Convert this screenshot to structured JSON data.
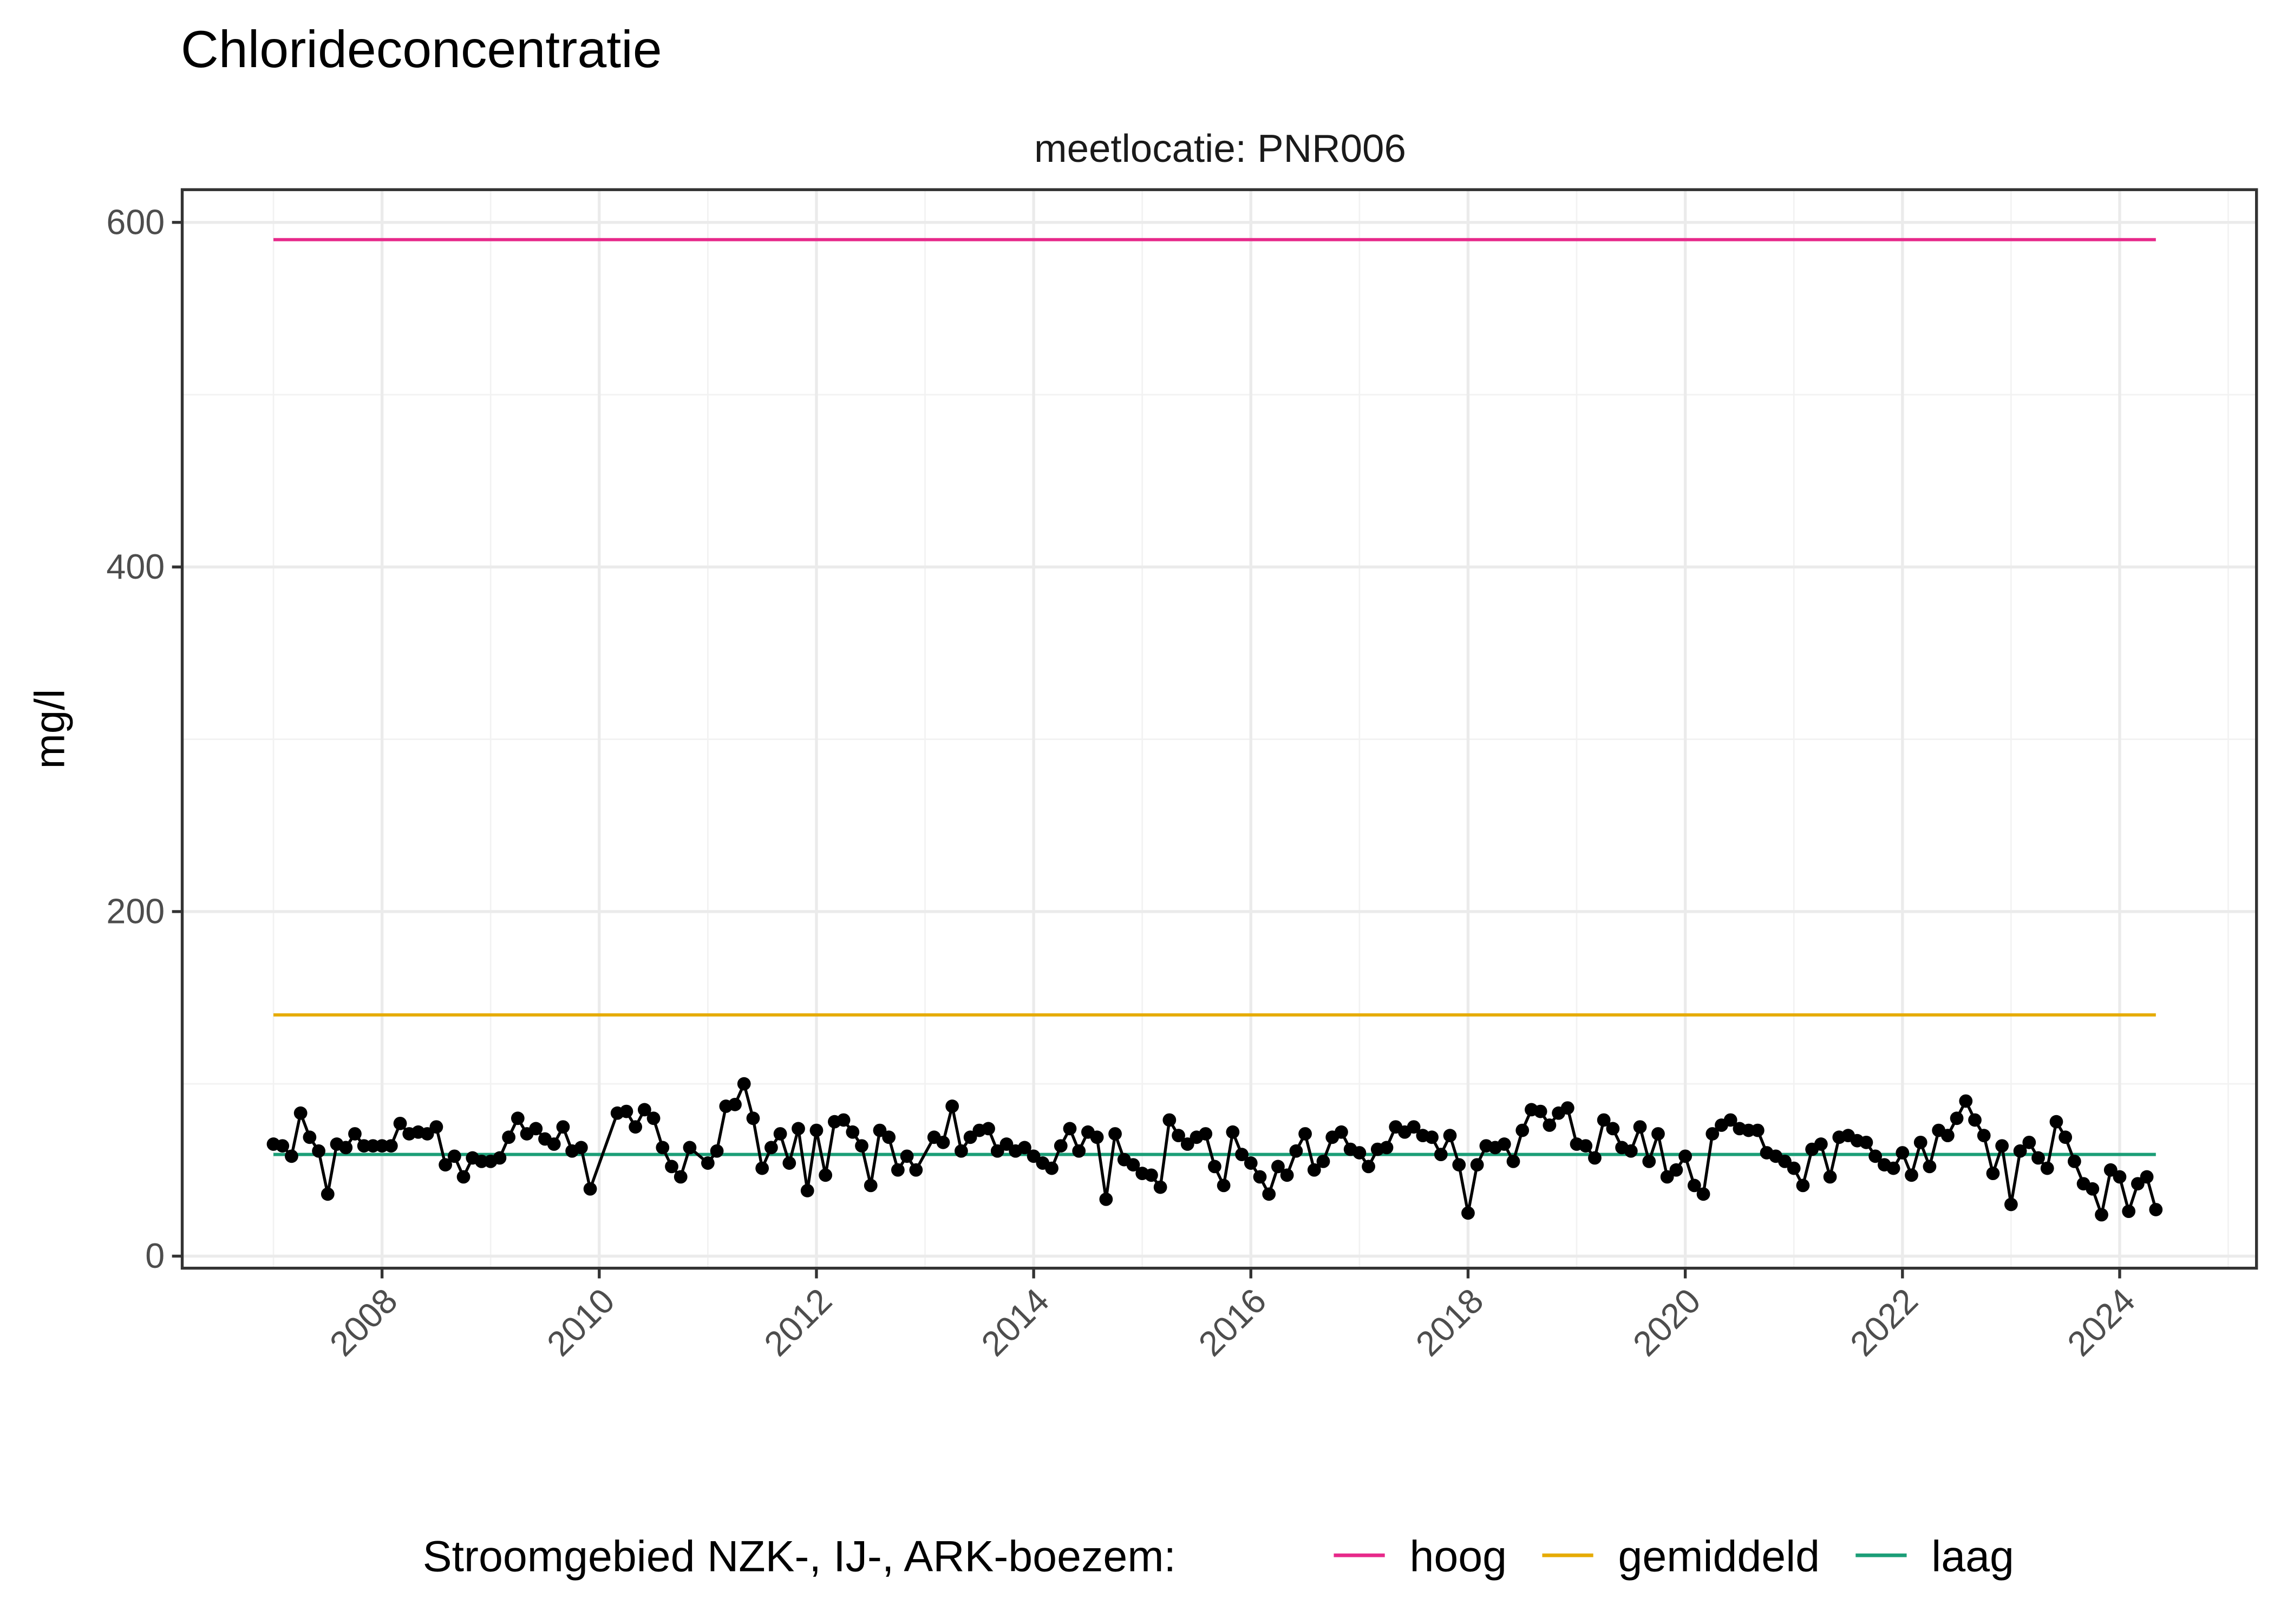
{
  "title": "Chloride­concentratie",
  "chart_data": {
    "type": "line",
    "title": "Chlorideconcentratie",
    "facet_label": "meetlocatie: PNR006",
    "xlabel": "",
    "ylabel": "mg/l",
    "xlim": [
      2006.16,
      2025.26
    ],
    "ylim": [
      -7,
      619
    ],
    "x_ticks": [
      "2008",
      "2010",
      "2012",
      "2014",
      "2016",
      "2018",
      "2020",
      "2022",
      "2024"
    ],
    "y_ticks": [
      "0",
      "200",
      "400",
      "600"
    ],
    "grid": true,
    "legend": {
      "position": "bottom",
      "title": "Stroomgebied NZK-, IJ-, ARK-boezem:",
      "entries": [
        {
          "label": "hoog",
          "color": "#E7298A"
        },
        {
          "label": "gemiddeld",
          "color": "#E6AB02"
        },
        {
          "label": "laag",
          "color": "#1B9E77"
        }
      ]
    },
    "reference_lines": [
      {
        "name": "hoog",
        "value": 590,
        "from": "2007-01",
        "to": "2024-05",
        "color": "#E7298A"
      },
      {
        "name": "gemiddeld",
        "value": 140,
        "from": "2007-01",
        "to": "2024-05",
        "color": "#E6AB02"
      },
      {
        "name": "laag",
        "value": 59,
        "from": "2007-01",
        "to": "2024-05",
        "color": "#1B9E77"
      }
    ],
    "series": [
      {
        "color": "#000000",
        "points": [
          [
            "2007-01",
            65
          ],
          [
            "2007-02",
            64
          ],
          [
            "2007-03",
            58
          ],
          [
            "2007-04",
            83
          ],
          [
            "2007-05",
            69
          ],
          [
            "2007-06",
            61
          ],
          [
            "2007-07",
            36
          ],
          [
            "2007-08",
            65
          ],
          [
            "2007-09",
            63
          ],
          [
            "2007-10",
            71
          ],
          [
            "2007-11",
            64
          ],
          [
            "2007-12",
            64
          ],
          [
            "2008-01",
            64
          ],
          [
            "2008-02",
            64
          ],
          [
            "2008-03",
            77
          ],
          [
            "2008-04",
            71
          ],
          [
            "2008-05",
            72
          ],
          [
            "2008-06",
            71
          ],
          [
            "2008-07",
            75
          ],
          [
            "2008-08",
            53
          ],
          [
            "2008-09",
            58
          ],
          [
            "2008-10",
            46
          ],
          [
            "2008-11",
            57
          ],
          [
            "2008-12",
            55
          ],
          [
            "2009-01",
            55
          ],
          [
            "2009-02",
            57
          ],
          [
            "2009-03",
            69
          ],
          [
            "2009-04",
            80
          ],
          [
            "2009-05",
            71
          ],
          [
            "2009-06",
            74
          ],
          [
            "2009-07",
            68
          ],
          [
            "2009-08",
            65
          ],
          [
            "2009-09",
            75
          ],
          [
            "2009-10",
            61
          ],
          [
            "2009-11",
            63
          ],
          [
            "2009-12",
            39
          ],
          [
            "2010-03",
            83
          ],
          [
            "2010-04",
            84
          ],
          [
            "2010-05",
            75
          ],
          [
            "2010-06",
            85
          ],
          [
            "2010-07",
            80
          ],
          [
            "2010-08",
            63
          ],
          [
            "2010-09",
            52
          ],
          [
            "2010-10",
            46
          ],
          [
            "2010-11",
            63
          ],
          [
            "2011-01",
            54
          ],
          [
            "2011-02",
            61
          ],
          [
            "2011-03",
            87
          ],
          [
            "2011-04",
            88
          ],
          [
            "2011-05",
            100
          ],
          [
            "2011-06",
            80
          ],
          [
            "2011-07",
            51
          ],
          [
            "2011-08",
            63
          ],
          [
            "2011-09",
            71
          ],
          [
            "2011-10",
            54
          ],
          [
            "2011-11",
            74
          ],
          [
            "2011-12",
            38
          ],
          [
            "2012-01",
            73
          ],
          [
            "2012-02",
            47
          ],
          [
            "2012-03",
            78
          ],
          [
            "2012-04",
            79
          ],
          [
            "2012-05",
            72
          ],
          [
            "2012-06",
            64
          ],
          [
            "2012-07",
            41
          ],
          [
            "2012-08",
            73
          ],
          [
            "2012-09",
            69
          ],
          [
            "2012-10",
            50
          ],
          [
            "2012-11",
            58
          ],
          [
            "2012-12",
            50
          ],
          [
            "2013-02",
            69
          ],
          [
            "2013-03",
            66
          ],
          [
            "2013-04",
            87
          ],
          [
            "2013-05",
            61
          ],
          [
            "2013-06",
            69
          ],
          [
            "2013-07",
            73
          ],
          [
            "2013-08",
            74
          ],
          [
            "2013-09",
            61
          ],
          [
            "2013-10",
            65
          ],
          [
            "2013-11",
            61
          ],
          [
            "2013-12",
            63
          ],
          [
            "2014-01",
            58
          ],
          [
            "2014-02",
            54
          ],
          [
            "2014-03",
            51
          ],
          [
            "2014-04",
            64
          ],
          [
            "2014-05",
            74
          ],
          [
            "2014-06",
            61
          ],
          [
            "2014-07",
            72
          ],
          [
            "2014-08",
            69
          ],
          [
            "2014-09",
            33
          ],
          [
            "2014-10",
            71
          ],
          [
            "2014-11",
            56
          ],
          [
            "2014-12",
            53
          ],
          [
            "2015-01",
            48
          ],
          [
            "2015-02",
            47
          ],
          [
            "2015-03",
            40
          ],
          [
            "2015-04",
            79
          ],
          [
            "2015-05",
            70
          ],
          [
            "2015-06",
            65
          ],
          [
            "2015-07",
            69
          ],
          [
            "2015-08",
            71
          ],
          [
            "2015-09",
            52
          ],
          [
            "2015-10",
            41
          ],
          [
            "2015-11",
            72
          ],
          [
            "2015-12",
            59
          ],
          [
            "2016-01",
            54
          ],
          [
            "2016-02",
            46
          ],
          [
            "2016-03",
            36
          ],
          [
            "2016-04",
            52
          ],
          [
            "2016-05",
            47
          ],
          [
            "2016-06",
            61
          ],
          [
            "2016-07",
            71
          ],
          [
            "2016-08",
            50
          ],
          [
            "2016-09",
            55
          ],
          [
            "2016-10",
            69
          ],
          [
            "2016-11",
            72
          ],
          [
            "2016-12",
            62
          ],
          [
            "2017-01",
            60
          ],
          [
            "2017-02",
            52
          ],
          [
            "2017-03",
            62
          ],
          [
            "2017-04",
            63
          ],
          [
            "2017-05",
            75
          ],
          [
            "2017-06",
            72
          ],
          [
            "2017-07",
            75
          ],
          [
            "2017-08",
            70
          ],
          [
            "2017-09",
            69
          ],
          [
            "2017-10",
            59
          ],
          [
            "2017-11",
            70
          ],
          [
            "2017-12",
            53
          ],
          [
            "2018-01",
            25
          ],
          [
            "2018-02",
            53
          ],
          [
            "2018-03",
            64
          ],
          [
            "2018-04",
            63
          ],
          [
            "2018-05",
            65
          ],
          [
            "2018-06",
            55
          ],
          [
            "2018-07",
            73
          ],
          [
            "2018-08",
            85
          ],
          [
            "2018-09",
            84
          ],
          [
            "2018-10",
            76
          ],
          [
            "2018-11",
            83
          ],
          [
            "2018-12",
            86
          ],
          [
            "2019-01",
            65
          ],
          [
            "2019-02",
            64
          ],
          [
            "2019-03",
            57
          ],
          [
            "2019-04",
            79
          ],
          [
            "2019-05",
            74
          ],
          [
            "2019-06",
            63
          ],
          [
            "2019-07",
            61
          ],
          [
            "2019-08",
            75
          ],
          [
            "2019-09",
            55
          ],
          [
            "2019-10",
            71
          ],
          [
            "2019-11",
            46
          ],
          [
            "2019-12",
            50
          ],
          [
            "2020-01",
            58
          ],
          [
            "2020-02",
            41
          ],
          [
            "2020-03",
            36
          ],
          [
            "2020-04",
            71
          ],
          [
            "2020-05",
            76
          ],
          [
            "2020-06",
            79
          ],
          [
            "2020-07",
            74
          ],
          [
            "2020-08",
            73
          ],
          [
            "2020-09",
            73
          ],
          [
            "2020-10",
            60
          ],
          [
            "2020-11",
            58
          ],
          [
            "2020-12",
            55
          ],
          [
            "2021-01",
            51
          ],
          [
            "2021-02",
            41
          ],
          [
            "2021-03",
            62
          ],
          [
            "2021-04",
            65
          ],
          [
            "2021-05",
            46
          ],
          [
            "2021-06",
            69
          ],
          [
            "2021-07",
            70
          ],
          [
            "2021-08",
            67
          ],
          [
            "2021-09",
            66
          ],
          [
            "2021-10",
            58
          ],
          [
            "2021-11",
            53
          ],
          [
            "2021-12",
            51
          ],
          [
            "2022-01",
            60
          ],
          [
            "2022-02",
            47
          ],
          [
            "2022-03",
            66
          ],
          [
            "2022-04",
            52
          ],
          [
            "2022-05",
            73
          ],
          [
            "2022-06",
            70
          ],
          [
            "2022-07",
            80
          ],
          [
            "2022-08",
            90
          ],
          [
            "2022-09",
            79
          ],
          [
            "2022-10",
            70
          ],
          [
            "2022-11",
            48
          ],
          [
            "2022-12",
            64
          ],
          [
            "2023-01",
            30
          ],
          [
            "2023-02",
            61
          ],
          [
            "2023-03",
            66
          ],
          [
            "2023-04",
            57
          ],
          [
            "2023-05",
            51
          ],
          [
            "2023-06",
            78
          ],
          [
            "2023-07",
            69
          ],
          [
            "2023-08",
            55
          ],
          [
            "2023-09",
            42
          ],
          [
            "2023-10",
            39
          ],
          [
            "2023-11",
            24
          ],
          [
            "2023-12",
            50
          ],
          [
            "2024-01",
            46
          ],
          [
            "2024-02",
            26
          ],
          [
            "2024-03",
            42
          ],
          [
            "2024-04",
            46
          ],
          [
            "2024-05",
            27
          ]
        ]
      }
    ]
  }
}
